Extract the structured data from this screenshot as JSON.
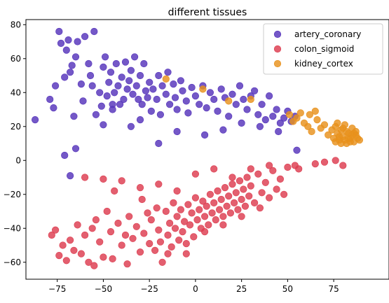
{
  "chart_data": {
    "type": "scatter",
    "title": "different tissues",
    "xlabel": "",
    "ylabel": "",
    "xlim": [
      -92,
      105
    ],
    "ylim": [
      -70,
      83
    ],
    "xticks": [
      -75,
      -50,
      -25,
      0,
      25,
      50,
      75
    ],
    "yticks": [
      -60,
      -40,
      -20,
      0,
      20,
      40,
      60,
      80
    ],
    "grid": false,
    "legend": "top-right",
    "series": [
      {
        "name": "artery_coronary",
        "color": "#5533bb",
        "points": [
          [
            -87,
            24
          ],
          [
            -79,
            36
          ],
          [
            -77,
            31
          ],
          [
            -76,
            44
          ],
          [
            -74,
            76
          ],
          [
            -73,
            69
          ],
          [
            -71,
            49
          ],
          [
            -70,
            65
          ],
          [
            -69,
            71
          ],
          [
            -68,
            52
          ],
          [
            -67,
            56
          ],
          [
            -66,
            26
          ],
          [
            -65,
            61
          ],
          [
            -64,
            70
          ],
          [
            -62,
            45
          ],
          [
            -61,
            35
          ],
          [
            -60,
            73
          ],
          [
            -58,
            57
          ],
          [
            -57,
            50
          ],
          [
            -56,
            44
          ],
          [
            -55,
            76
          ],
          [
            -54,
            27
          ],
          [
            -52,
            40
          ],
          [
            -51,
            32
          ],
          [
            -50,
            55
          ],
          [
            -49,
            61
          ],
          [
            -48,
            38
          ],
          [
            -47,
            46
          ],
          [
            -46,
            52
          ],
          [
            -45,
            30
          ],
          [
            -44,
            40
          ],
          [
            -43,
            57
          ],
          [
            -42,
            44
          ],
          [
            -41,
            33
          ],
          [
            -40,
            49
          ],
          [
            -39,
            36
          ],
          [
            -38,
            58
          ],
          [
            -37,
            42
          ],
          [
            -36,
            47
          ],
          [
            -35,
            53
          ],
          [
            -34,
            39
          ],
          [
            -33,
            61
          ],
          [
            -32,
            44
          ],
          [
            -31,
            36
          ],
          [
            -30,
            50
          ],
          [
            -29,
            33
          ],
          [
            -28,
            57
          ],
          [
            -27,
            41
          ],
          [
            -26,
            37
          ],
          [
            -25,
            46
          ],
          [
            -24,
            29
          ],
          [
            -23,
            42
          ],
          [
            -21,
            36
          ],
          [
            -20,
            50
          ],
          [
            -19,
            27
          ],
          [
            -18,
            44
          ],
          [
            -16,
            39
          ],
          [
            -15,
            52
          ],
          [
            -14,
            33
          ],
          [
            -12,
            45
          ],
          [
            -11,
            37
          ],
          [
            -10,
            30
          ],
          [
            -8,
            47
          ],
          [
            -7,
            41
          ],
          [
            -5,
            35
          ],
          [
            -4,
            28
          ],
          [
            -2,
            43
          ],
          [
            0,
            38
          ],
          [
            2,
            33
          ],
          [
            4,
            44
          ],
          [
            6,
            31
          ],
          [
            8,
            40
          ],
          [
            10,
            36
          ],
          [
            12,
            29
          ],
          [
            14,
            42
          ],
          [
            16,
            37
          ],
          [
            18,
            26
          ],
          [
            20,
            39
          ],
          [
            22,
            33
          ],
          [
            24,
            44
          ],
          [
            26,
            36
          ],
          [
            28,
            30
          ],
          [
            30,
            38
          ],
          [
            32,
            41
          ],
          [
            34,
            27
          ],
          [
            36,
            33
          ],
          [
            38,
            24
          ],
          [
            40,
            38
          ],
          [
            42,
            26
          ],
          [
            44,
            30
          ],
          [
            46,
            22
          ],
          [
            48,
            25
          ],
          [
            50,
            29
          ],
          [
            52,
            23
          ],
          [
            54,
            26
          ],
          [
            -65,
            7
          ],
          [
            -68,
            -9
          ],
          [
            -71,
            3
          ],
          [
            -45,
            33
          ],
          [
            -35,
            20
          ],
          [
            -20,
            10
          ],
          [
            -10,
            17
          ],
          [
            5,
            15
          ],
          [
            15,
            18
          ],
          [
            25,
            22
          ],
          [
            35,
            20
          ],
          [
            45,
            17
          ],
          [
            55,
            6
          ],
          [
            -50,
            21
          ],
          [
            -30,
            24
          ]
        ]
      },
      {
        "name": "colon_sigmoid",
        "color": "#dd3c4f",
        "points": [
          [
            -78,
            -44
          ],
          [
            -76,
            -41
          ],
          [
            -74,
            -56
          ],
          [
            -72,
            -50
          ],
          [
            -70,
            -59
          ],
          [
            -68,
            -47
          ],
          [
            -66,
            -53
          ],
          [
            -64,
            -38
          ],
          [
            -62,
            -55
          ],
          [
            -60,
            -44
          ],
          [
            -58,
            -60
          ],
          [
            -56,
            -40
          ],
          [
            -55,
            -62
          ],
          [
            -54,
            -35
          ],
          [
            -52,
            -48
          ],
          [
            -50,
            -57
          ],
          [
            -48,
            -30
          ],
          [
            -46,
            -42
          ],
          [
            -45,
            -58
          ],
          [
            -44,
            -18
          ],
          [
            -42,
            -37
          ],
          [
            -40,
            -50
          ],
          [
            -38,
            -44
          ],
          [
            -37,
            -61
          ],
          [
            -36,
            -33
          ],
          [
            -34,
            -46
          ],
          [
            -32,
            -39
          ],
          [
            -30,
            -54
          ],
          [
            -29,
            -23
          ],
          [
            -28,
            -43
          ],
          [
            -26,
            -31
          ],
          [
            -25,
            -49
          ],
          [
            -24,
            -35
          ],
          [
            -22,
            -53
          ],
          [
            -21,
            -28
          ],
          [
            -20,
            -41
          ],
          [
            -19,
            -48
          ],
          [
            -18,
            -60
          ],
          [
            -16,
            -30
          ],
          [
            -15,
            -44
          ],
          [
            -14,
            -37
          ],
          [
            -13,
            -51
          ],
          [
            -12,
            -25
          ],
          [
            -11,
            -40
          ],
          [
            -10,
            -33
          ],
          [
            -9,
            -47
          ],
          [
            -8,
            -29
          ],
          [
            -7,
            -42
          ],
          [
            -6,
            -36
          ],
          [
            -5,
            -49
          ],
          [
            -4,
            -26
          ],
          [
            -3,
            -38
          ],
          [
            -2,
            -31
          ],
          [
            -1,
            -45
          ],
          [
            0,
            -22
          ],
          [
            1,
            -35
          ],
          [
            2,
            -29
          ],
          [
            3,
            -40
          ],
          [
            4,
            -24
          ],
          [
            5,
            -33
          ],
          [
            6,
            -27
          ],
          [
            7,
            -38
          ],
          [
            8,
            -20
          ],
          [
            9,
            -31
          ],
          [
            10,
            -25
          ],
          [
            11,
            -35
          ],
          [
            12,
            -18
          ],
          [
            13,
            -29
          ],
          [
            14,
            -23
          ],
          [
            15,
            -33
          ],
          [
            16,
            -16
          ],
          [
            17,
            -27
          ],
          [
            18,
            -21
          ],
          [
            19,
            -31
          ],
          [
            20,
            -14
          ],
          [
            21,
            -25
          ],
          [
            22,
            -19
          ],
          [
            23,
            -29
          ],
          [
            24,
            -12
          ],
          [
            25,
            -23
          ],
          [
            26,
            -17
          ],
          [
            27,
            -27
          ],
          [
            28,
            -10
          ],
          [
            29,
            -21
          ],
          [
            30,
            -15
          ],
          [
            32,
            -25
          ],
          [
            34,
            -8
          ],
          [
            36,
            -19
          ],
          [
            38,
            -13
          ],
          [
            40,
            -22
          ],
          [
            42,
            -6
          ],
          [
            44,
            -17
          ],
          [
            46,
            -11
          ],
          [
            48,
            -20
          ],
          [
            50,
            -4
          ],
          [
            54,
            -3
          ],
          [
            56,
            -5
          ],
          [
            65,
            -2
          ],
          [
            70,
            -1
          ],
          [
            76,
            0
          ],
          [
            80,
            -3
          ],
          [
            -60,
            -10
          ],
          [
            -50,
            -11
          ],
          [
            -40,
            -12
          ],
          [
            -30,
            -16
          ],
          [
            -20,
            -14
          ],
          [
            -10,
            -18
          ],
          [
            0,
            -8
          ],
          [
            10,
            -5
          ],
          [
            20,
            -10
          ],
          [
            30,
            -5
          ],
          [
            40,
            -3
          ],
          [
            -5,
            -55
          ],
          [
            -15,
            -55
          ],
          [
            5,
            -42
          ],
          [
            15,
            -38
          ],
          [
            25,
            -33
          ],
          [
            35,
            -28
          ]
        ]
      },
      {
        "name": "kidney_cortex",
        "color": "#e8911c",
        "points": [
          [
            -16,
            48
          ],
          [
            4,
            42
          ],
          [
            18,
            35
          ],
          [
            30,
            36
          ],
          [
            51,
            27
          ],
          [
            53,
            23
          ],
          [
            55,
            25
          ],
          [
            57,
            28
          ],
          [
            59,
            22
          ],
          [
            61,
            20
          ],
          [
            62,
            27
          ],
          [
            63,
            17
          ],
          [
            65,
            29
          ],
          [
            66,
            24
          ],
          [
            68,
            19
          ],
          [
            70,
            21
          ],
          [
            72,
            15
          ],
          [
            74,
            18
          ],
          [
            75,
            13
          ],
          [
            76,
            20
          ],
          [
            77,
            16
          ],
          [
            78,
            12
          ],
          [
            79,
            18
          ],
          [
            80,
            14
          ],
          [
            81,
            21
          ],
          [
            82,
            10
          ],
          [
            83,
            16
          ],
          [
            84,
            13
          ],
          [
            85,
            19
          ],
          [
            86,
            11
          ],
          [
            87,
            15
          ],
          [
            88,
            13
          ],
          [
            89,
            12
          ],
          [
            77,
            22
          ],
          [
            79,
            10
          ],
          [
            82,
            17
          ],
          [
            84,
            11
          ],
          [
            86,
            16
          ],
          [
            80,
            19
          ],
          [
            78,
            14
          ],
          [
            83,
            13
          ],
          [
            85,
            15
          ],
          [
            81,
            12
          ],
          [
            87,
            17
          ],
          [
            76,
            11
          ]
        ]
      }
    ]
  }
}
